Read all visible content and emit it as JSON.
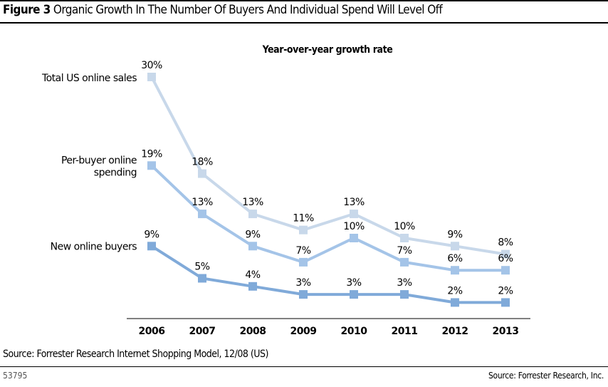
{
  "header": {
    "figure_label": "Figure 3",
    "title": "Organic Growth In The Number Of Buyers And Individual Spend Will Level Off"
  },
  "footer": {
    "source": "Source: Forrester Research Internet Shopping Model, 12/08 (US)",
    "figure_id": "53795",
    "credit": "Source: Forrester Research, Inc."
  },
  "chart_data": {
    "type": "line",
    "title": "Year-over-year growth rate",
    "categories": [
      "2006",
      "2007",
      "2008",
      "2009",
      "2010",
      "2011",
      "2012",
      "2013"
    ],
    "ylim": [
      0,
      30
    ],
    "grid": false,
    "legend": "inline-left",
    "series": [
      {
        "name": "Total US online sales",
        "name_lines": [
          "Total US online sales"
        ],
        "color": "#c8d8ea",
        "values": [
          30,
          18,
          13,
          11,
          13,
          10,
          9,
          8
        ],
        "labels": [
          "30%",
          "18%",
          "13%",
          "11%",
          "13%",
          "10%",
          "9%",
          "8%"
        ]
      },
      {
        "name": "Per-buyer online spending",
        "name_lines": [
          "Per-buyer online",
          "spending"
        ],
        "color": "#a4c4e8",
        "values": [
          19,
          13,
          9,
          7,
          10,
          7,
          6,
          6
        ],
        "labels": [
          "19%",
          "13%",
          "9%",
          "7%",
          "10%",
          "7%",
          "6%",
          "6%"
        ]
      },
      {
        "name": "New online buyers",
        "name_lines": [
          "New online buyers"
        ],
        "color": "#80aad9",
        "values": [
          9,
          5,
          4,
          3,
          3,
          3,
          2,
          2
        ],
        "labels": [
          "9%",
          "5%",
          "4%",
          "3%",
          "3%",
          "3%",
          "2%",
          "2%"
        ]
      }
    ]
  }
}
